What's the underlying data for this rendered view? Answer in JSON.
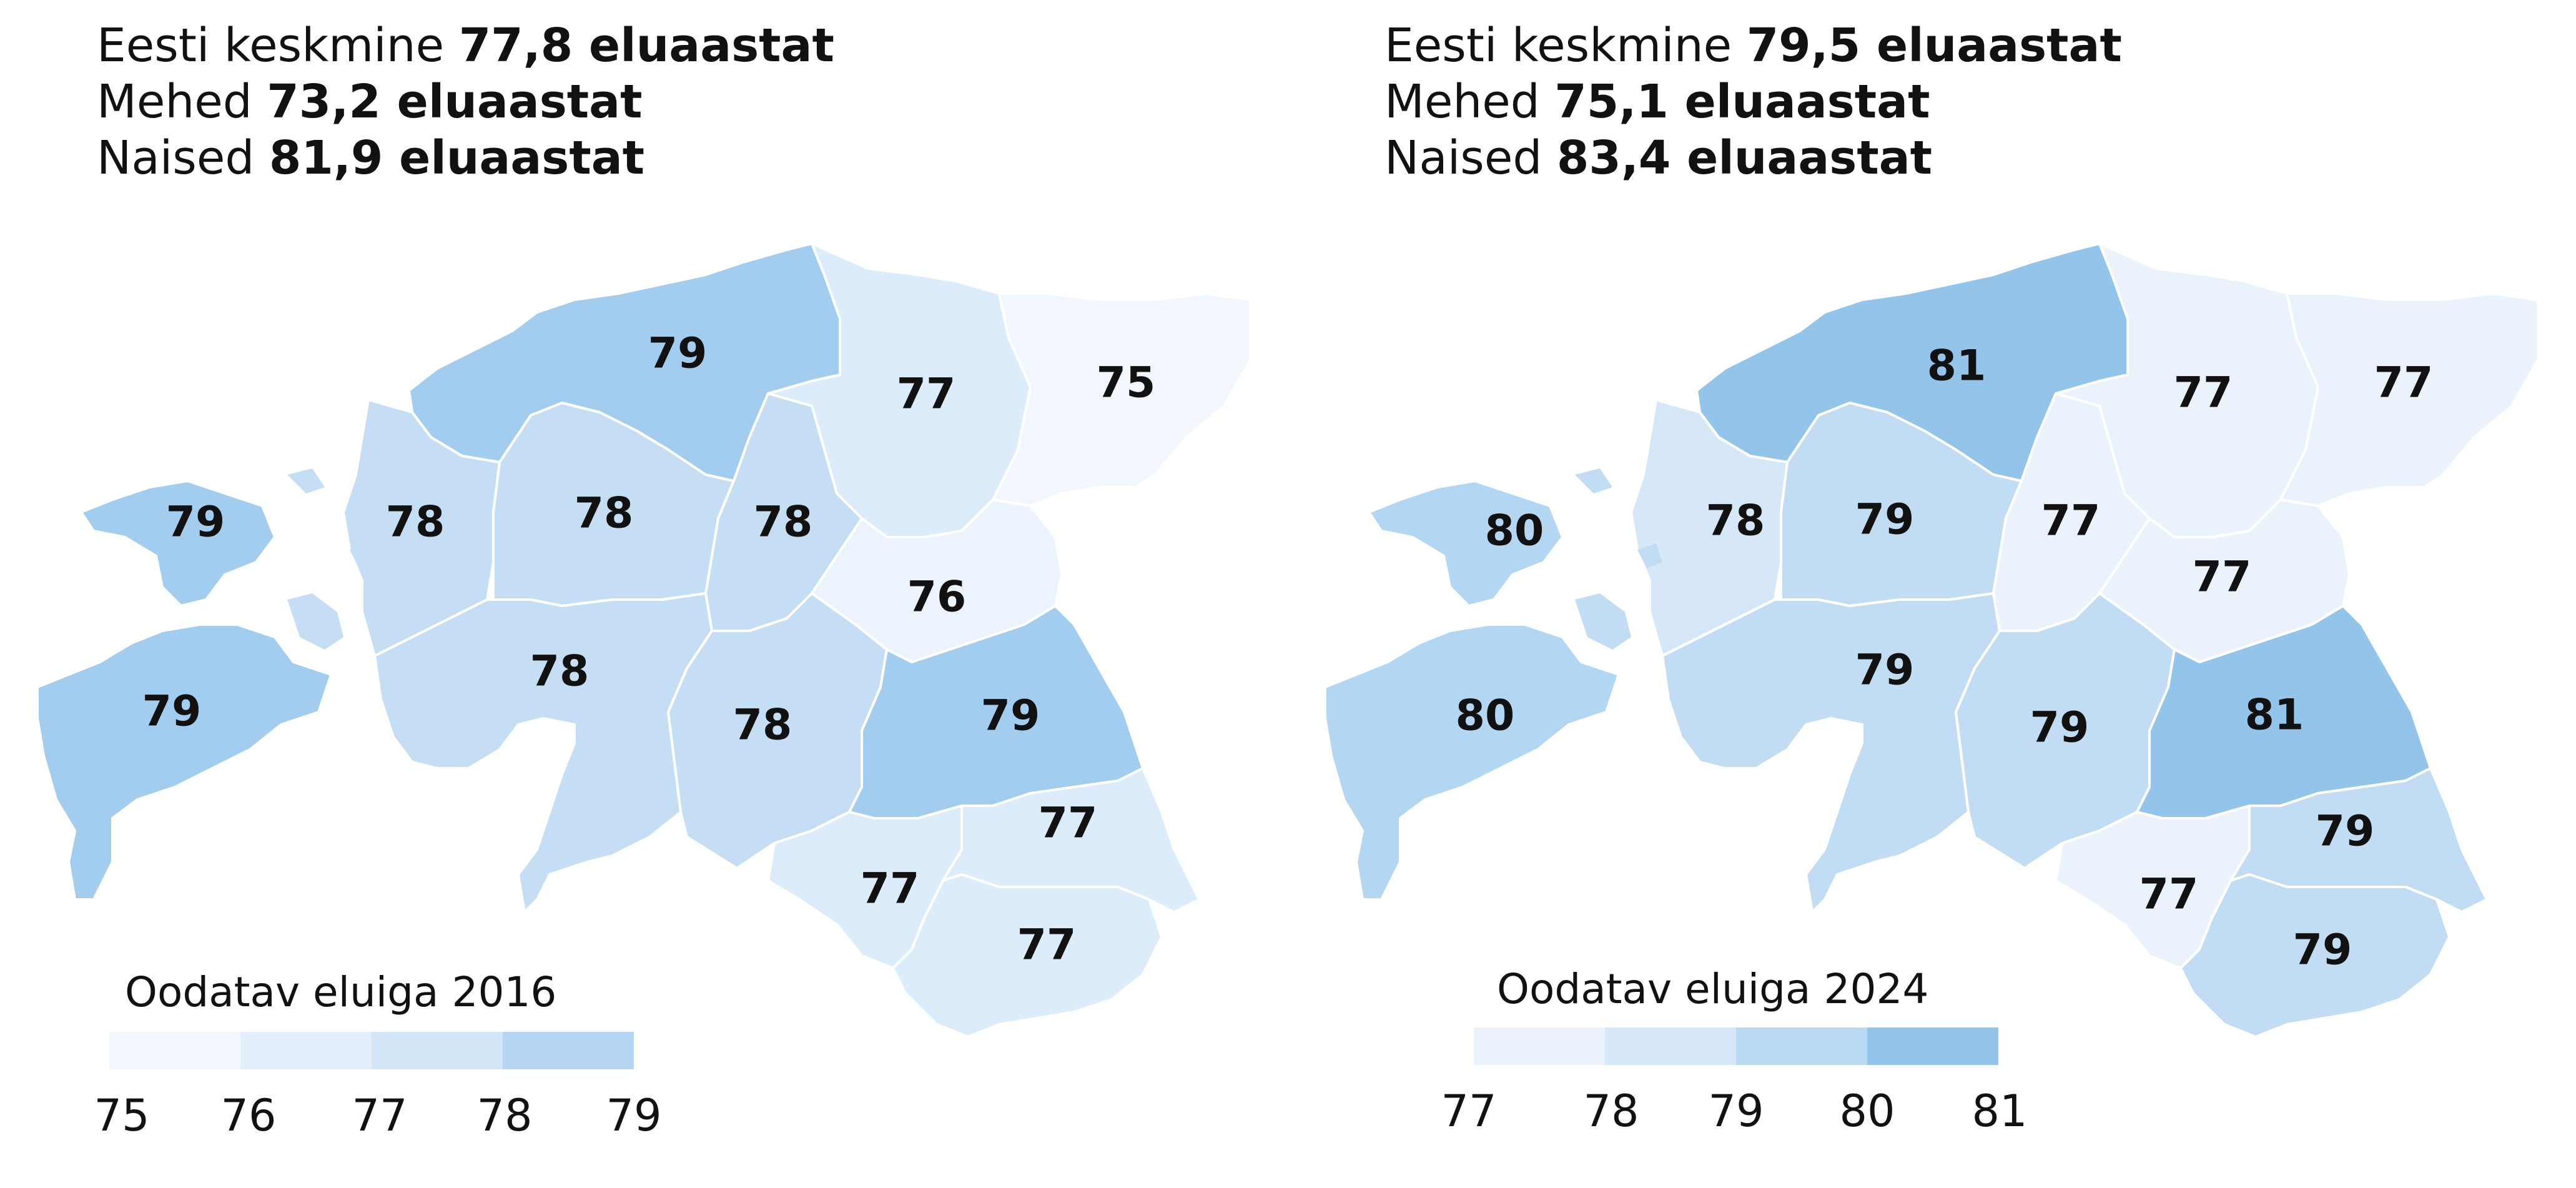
{
  "colors": {
    "75": "#f1f7fd",
    "76": "#ddecfa",
    "77": "#eaf3fc",
    "78": "#c2dcf3",
    "79": "#a8cfef",
    "80": "#b5d6f2",
    "81": "#93c5eb",
    "border": "#ffffff"
  },
  "maps": [
    {
      "id": "2016",
      "avg_prefix": "Eesti keskmine ",
      "avg_value": "77,8 eluaastat",
      "men_prefix": "Mehed ",
      "men_value": "73,2 eluaastat",
      "women_prefix": "Naised ",
      "women_value": "81,9 eluaastat",
      "legend_title": "Oodatav eluiga 2016",
      "legend_ticks": [
        "75",
        "76",
        "77",
        "78",
        "79"
      ],
      "legend_colors": [
        "#f1f7fd",
        "#e3effb",
        "#d3e6f7",
        "#b5d6f2"
      ],
      "regions": [
        {
          "name": "harju",
          "value": "79",
          "color": "#a3cdee"
        },
        {
          "name": "laane-viru",
          "value": "77",
          "color": "#ddecfa"
        },
        {
          "name": "ida-viru",
          "value": "75",
          "color": "#f1f7fd"
        },
        {
          "name": "saare",
          "value": "79",
          "color": "#a3cdee"
        },
        {
          "name": "hiiu",
          "value": "79",
          "color": "#a3cdee"
        },
        {
          "name": "laane",
          "value": "78",
          "color": "#c6def4"
        },
        {
          "name": "rapla",
          "value": "78",
          "color": "#c6def4"
        },
        {
          "name": "jarva",
          "value": "78",
          "color": "#c6def4"
        },
        {
          "name": "jogeva",
          "value": "76",
          "color": "#ebf4fc"
        },
        {
          "name": "parnu",
          "value": "78",
          "color": "#c6def4"
        },
        {
          "name": "viljandi",
          "value": "78",
          "color": "#c6def4"
        },
        {
          "name": "tartu",
          "value": "79",
          "color": "#a3cdee"
        },
        {
          "name": "valga",
          "value": "77",
          "color": "#ddecfa"
        },
        {
          "name": "polva",
          "value": "77",
          "color": "#ddecfa"
        },
        {
          "name": "voru",
          "value": "77",
          "color": "#ddecfa"
        }
      ]
    },
    {
      "id": "2024",
      "avg_prefix": "Eesti keskmine ",
      "avg_value": "79,5 eluaastat",
      "men_prefix": "Mehed ",
      "men_value": "75,1 eluaastat",
      "women_prefix": "Naised ",
      "women_value": "83,4 eluaastat",
      "legend_title": "Oodatav eluiga 2024",
      "legend_ticks": [
        "77",
        "78",
        "79",
        "80",
        "81"
      ],
      "legend_colors": [
        "#eaf3fc",
        "#d6e8f8",
        "#b9d8f2",
        "#93c5eb"
      ],
      "regions": [
        {
          "name": "harju",
          "value": "81",
          "color": "#93c5eb"
        },
        {
          "name": "laane-viru",
          "value": "77",
          "color": "#eaf3fc"
        },
        {
          "name": "ida-viru",
          "value": "77",
          "color": "#eaf3fc"
        },
        {
          "name": "saare",
          "value": "80",
          "color": "#b3d6f2"
        },
        {
          "name": "hiiu",
          "value": "80",
          "color": "#b3d6f2"
        },
        {
          "name": "laane",
          "value": "78",
          "color": "#d6e8f8"
        },
        {
          "name": "rapla",
          "value": "79",
          "color": "#c2dcf3"
        },
        {
          "name": "jarva",
          "value": "77",
          "color": "#eaf3fc"
        },
        {
          "name": "jogeva",
          "value": "77",
          "color": "#eaf3fc"
        },
        {
          "name": "parnu",
          "value": "79",
          "color": "#c2dcf3"
        },
        {
          "name": "viljandi",
          "value": "79",
          "color": "#c2dcf3"
        },
        {
          "name": "tartu",
          "value": "81",
          "color": "#93c5eb"
        },
        {
          "name": "valga",
          "value": "77",
          "color": "#eaf3fc"
        },
        {
          "name": "polva",
          "value": "79",
          "color": "#c2dcf3"
        },
        {
          "name": "voru",
          "value": "79",
          "color": "#c2dcf3"
        }
      ]
    }
  ]
}
